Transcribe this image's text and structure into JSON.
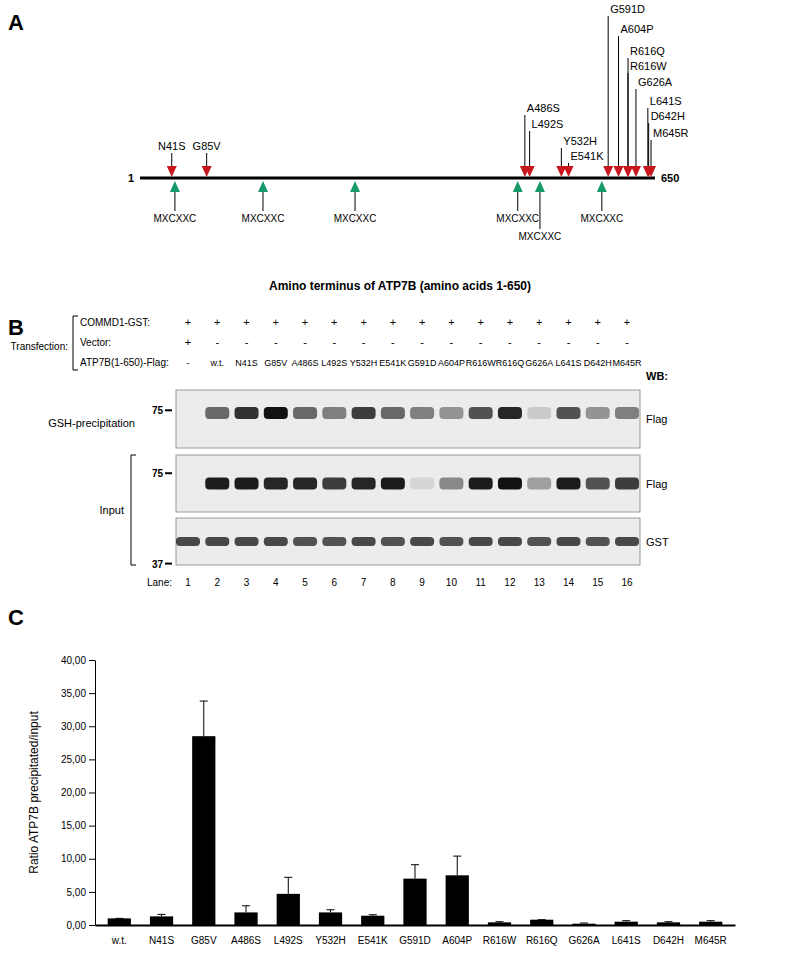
{
  "panel_labels": [
    "A",
    "B",
    "C"
  ],
  "panel_a": {
    "start": 1,
    "end": 650,
    "caption": "Amino terminus of ATP7B (amino acids 1-650)",
    "mutations": [
      {
        "label": "N41S",
        "position": 41
      },
      {
        "label": "G85V",
        "position": 85
      },
      {
        "label": "A486S",
        "position": 486
      },
      {
        "label": "L492S",
        "position": 492
      },
      {
        "label": "Y532H",
        "position": 532
      },
      {
        "label": "E541K",
        "position": 541
      },
      {
        "label": "G591D",
        "position": 591
      },
      {
        "label": "A604P",
        "position": 604
      },
      {
        "label": "R616W",
        "position": 616
      },
      {
        "label": "R616Q",
        "position": 616
      },
      {
        "label": "G626A",
        "position": 626
      },
      {
        "label": "L641S",
        "position": 641
      },
      {
        "label": "D642H",
        "position": 642
      },
      {
        "label": "M645R",
        "position": 645
      }
    ],
    "motifs": [
      {
        "label": "MXCXXC",
        "position": 45
      },
      {
        "label": "MXCXXC",
        "position": 156
      },
      {
        "label": "MXCXXC",
        "position": 272
      },
      {
        "label": "MXCXXC",
        "position": 477
      },
      {
        "label": "MXCXXC",
        "position": 505
      },
      {
        "label": "MXCXXC",
        "position": 583
      }
    ]
  },
  "panel_b": {
    "row_group_label": "Transfection:",
    "rows": [
      {
        "name": "COMMD1-GST:",
        "values": [
          "+",
          "+",
          "+",
          "+",
          "+",
          "+",
          "+",
          "+",
          "+",
          "+",
          "+",
          "+",
          "+",
          "+",
          "+",
          "+"
        ]
      },
      {
        "name": "Vector:",
        "values": [
          "+",
          "-",
          "-",
          "-",
          "-",
          "-",
          "-",
          "-",
          "-",
          "-",
          "-",
          "-",
          "-",
          "-",
          "-",
          "-"
        ]
      },
      {
        "name": "ATP7B(1-650)-Flag:",
        "values": [
          "-",
          "w.t.",
          "N41S",
          "G85V",
          "A486S",
          "L492S",
          "Y532H",
          "E541K",
          "G591D",
          "A604P",
          "R616W",
          "R616Q",
          "G626A",
          "L641S",
          "D642H",
          "M645R"
        ]
      }
    ],
    "wb_header": "WB:",
    "blot_groups": [
      {
        "label": "GSH-precipitation",
        "blots": [
          {
            "antibody": "Flag",
            "marker": 75,
            "bands": [
              0,
              0.6,
              0.85,
              1.0,
              0.6,
              0.5,
              0.8,
              0.6,
              0.5,
              0.4,
              0.7,
              0.9,
              0.15,
              0.7,
              0.4,
              0.5
            ]
          }
        ]
      },
      {
        "label": "Input",
        "blots": [
          {
            "antibody": "Flag",
            "marker": 75,
            "bands": [
              0,
              0.95,
              0.95,
              0.9,
              0.9,
              0.8,
              0.9,
              0.95,
              0.1,
              0.45,
              0.95,
              1.0,
              0.35,
              0.95,
              0.7,
              0.8
            ]
          },
          {
            "antibody": "GST",
            "marker": 37,
            "bands": [
              0.75,
              0.75,
              0.75,
              0.75,
              0.7,
              0.7,
              0.75,
              0.7,
              0.75,
              0.7,
              0.75,
              0.75,
              0.7,
              0.75,
              0.7,
              0.75
            ]
          }
        ]
      }
    ],
    "lane_label": "Lane:",
    "lanes": [
      1,
      2,
      3,
      4,
      5,
      6,
      7,
      8,
      9,
      10,
      11,
      12,
      13,
      14,
      15,
      16
    ]
  },
  "chart_data": {
    "type": "bar",
    "ylabel": "Ratio ATP7B precipitated/input",
    "categories": [
      "w.t.",
      "N41S",
      "G85V",
      "A486S",
      "L492S",
      "Y532H",
      "E541K",
      "G591D",
      "A604P",
      "R616W",
      "R616Q",
      "G626A",
      "L641S",
      "D642H",
      "M645R"
    ],
    "values": [
      1.0,
      1.3,
      28.5,
      1.9,
      4.7,
      1.9,
      1.4,
      7.0,
      7.5,
      0.4,
      0.8,
      0.2,
      0.5,
      0.4,
      0.5
    ],
    "errors": [
      0,
      0.3,
      5.3,
      1.0,
      2.5,
      0.4,
      0.15,
      2.1,
      2.9,
      0.1,
      0,
      0.1,
      0.15,
      0.1,
      0.15
    ],
    "color": "#000000",
    "grid": false,
    "ylim": [
      0,
      40
    ],
    "yticks": [
      {
        "value": 0,
        "label": "0,00"
      },
      {
        "value": 5,
        "label": "5,00"
      },
      {
        "value": 10,
        "label": "10,00"
      },
      {
        "value": 15,
        "label": "15,00"
      },
      {
        "value": 20,
        "label": "20,00"
      },
      {
        "value": 25,
        "label": "25,00"
      },
      {
        "value": 30,
        "label": "30,00"
      },
      {
        "value": 35,
        "label": "35,00"
      },
      {
        "value": 40,
        "label": "40,00"
      }
    ]
  }
}
